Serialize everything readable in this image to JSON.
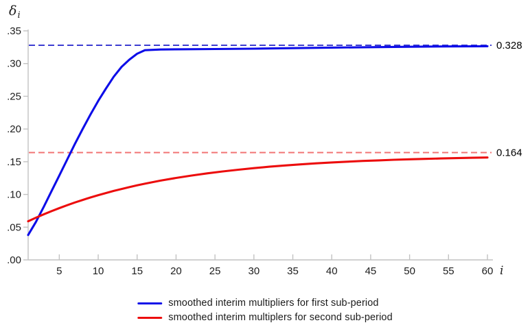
{
  "page": {
    "background": "#ffffff"
  },
  "labels": {
    "y_symbol": "δ",
    "y_subscript": "i",
    "x_label": "i"
  },
  "chart_data": {
    "type": "line",
    "title": "",
    "xlabel": "i",
    "ylabel": "δ_i",
    "xlim": [
      1,
      60
    ],
    "ylim": [
      0,
      0.35
    ],
    "grid": false,
    "legend_position": "bottom-center",
    "axis_color": "#c2c2c2",
    "tick_label_color": "#1c1c1c",
    "annotation_color": "#000000",
    "x_ticks": [
      {
        "value": 5,
        "label": "5"
      },
      {
        "value": 10,
        "label": "10"
      },
      {
        "value": 15,
        "label": "15"
      },
      {
        "value": 20,
        "label": "20"
      },
      {
        "value": 25,
        "label": "25"
      },
      {
        "value": 30,
        "label": "30"
      },
      {
        "value": 35,
        "label": "35"
      },
      {
        "value": 40,
        "label": "40"
      },
      {
        "value": 45,
        "label": "45"
      },
      {
        "value": 50,
        "label": "50"
      },
      {
        "value": 55,
        "label": "55"
      },
      {
        "value": 60,
        "label": "60"
      }
    ],
    "y_ticks": [
      {
        "value": 0.0,
        "label": ".00"
      },
      {
        "value": 0.05,
        "label": ".05"
      },
      {
        "value": 0.1,
        "label": ".10"
      },
      {
        "value": 0.15,
        "label": ".15"
      },
      {
        "value": 0.2,
        "label": ".20"
      },
      {
        "value": 0.25,
        "label": ".25"
      },
      {
        "value": 0.3,
        "label": ".30"
      },
      {
        "value": 0.35,
        "label": ".35"
      }
    ],
    "series": [
      {
        "name": "smoothed interim multipliers for first sub-period",
        "color": "#0d0de8",
        "points": [
          [
            1,
            0.038
          ],
          [
            2,
            0.058
          ],
          [
            3,
            0.081
          ],
          [
            4,
            0.105
          ],
          [
            5,
            0.129
          ],
          [
            6,
            0.153
          ],
          [
            7,
            0.177
          ],
          [
            8,
            0.2
          ],
          [
            9,
            0.222
          ],
          [
            10,
            0.243
          ],
          [
            11,
            0.262
          ],
          [
            12,
            0.28
          ],
          [
            13,
            0.295
          ],
          [
            14,
            0.306
          ],
          [
            15,
            0.315
          ],
          [
            16,
            0.3205
          ],
          [
            18,
            0.3215
          ],
          [
            20,
            0.3218
          ],
          [
            25,
            0.3222
          ],
          [
            30,
            0.3228
          ],
          [
            35,
            0.3236
          ],
          [
            40,
            0.3244
          ],
          [
            45,
            0.3251
          ],
          [
            50,
            0.3257
          ],
          [
            55,
            0.3262
          ],
          [
            60,
            0.3265
          ]
        ]
      },
      {
        "name": "smoothed interim multiplers for second sub-period",
        "color": "#ec0d0d",
        "points": [
          [
            1,
            0.059
          ],
          [
            2,
            0.0644
          ],
          [
            3,
            0.0696
          ],
          [
            4,
            0.0745
          ],
          [
            5,
            0.0791
          ],
          [
            6,
            0.0835
          ],
          [
            7,
            0.0877
          ],
          [
            8,
            0.0916
          ],
          [
            9,
            0.0954
          ],
          [
            10,
            0.0989
          ],
          [
            11,
            0.1022
          ],
          [
            12,
            0.1054
          ],
          [
            13,
            0.1084
          ],
          [
            14,
            0.1112
          ],
          [
            15,
            0.1139
          ],
          [
            16,
            0.1164
          ],
          [
            17,
            0.1188
          ],
          [
            18,
            0.1211
          ],
          [
            20,
            0.1252
          ],
          [
            22,
            0.1289
          ],
          [
            24,
            0.1322
          ],
          [
            26,
            0.1352
          ],
          [
            28,
            0.1378
          ],
          [
            30,
            0.1402
          ],
          [
            32,
            0.1424
          ],
          [
            34,
            0.1443
          ],
          [
            36,
            0.146
          ],
          [
            38,
            0.1475
          ],
          [
            40,
            0.1489
          ],
          [
            42,
            0.1501
          ],
          [
            44,
            0.1512
          ],
          [
            46,
            0.1521
          ],
          [
            48,
            0.153
          ],
          [
            50,
            0.1537
          ],
          [
            52,
            0.1544
          ],
          [
            54,
            0.155
          ],
          [
            56,
            0.1555
          ],
          [
            58,
            0.156
          ],
          [
            60,
            0.1564
          ]
        ]
      }
    ],
    "asymptotes": [
      {
        "value": 0.328,
        "label": "0.328",
        "color": "#3b3bd1",
        "style": "dashed"
      },
      {
        "value": 0.164,
        "label": "0.164",
        "color": "#f17373",
        "style": "dashed"
      }
    ]
  }
}
